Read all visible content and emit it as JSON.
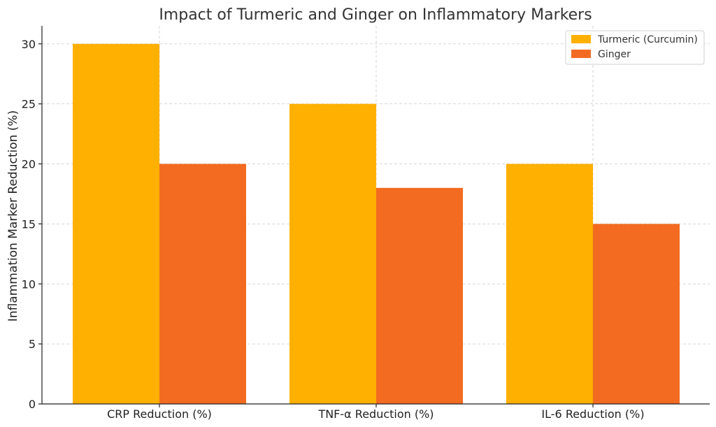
{
  "chart_data": {
    "type": "bar",
    "title": "Impact of Turmeric and Ginger on Inflammatory Markers",
    "xlabel": "",
    "ylabel": "Inflammation Marker Reduction (%)",
    "categories": [
      "CRP Reduction (%)",
      "TNF-α Reduction (%)",
      "IL-6 Reduction (%)"
    ],
    "series": [
      {
        "name": "Turmeric (Curcumin)",
        "values": [
          30,
          25,
          20
        ],
        "color": "#FFB000"
      },
      {
        "name": "Ginger",
        "values": [
          20,
          18,
          15
        ],
        "color": "#F26B21"
      }
    ],
    "ylim": [
      0,
      31.5
    ],
    "yticks": [
      0,
      5,
      10,
      15,
      20,
      25,
      30
    ],
    "grid": true,
    "legend_position": "top-right"
  }
}
